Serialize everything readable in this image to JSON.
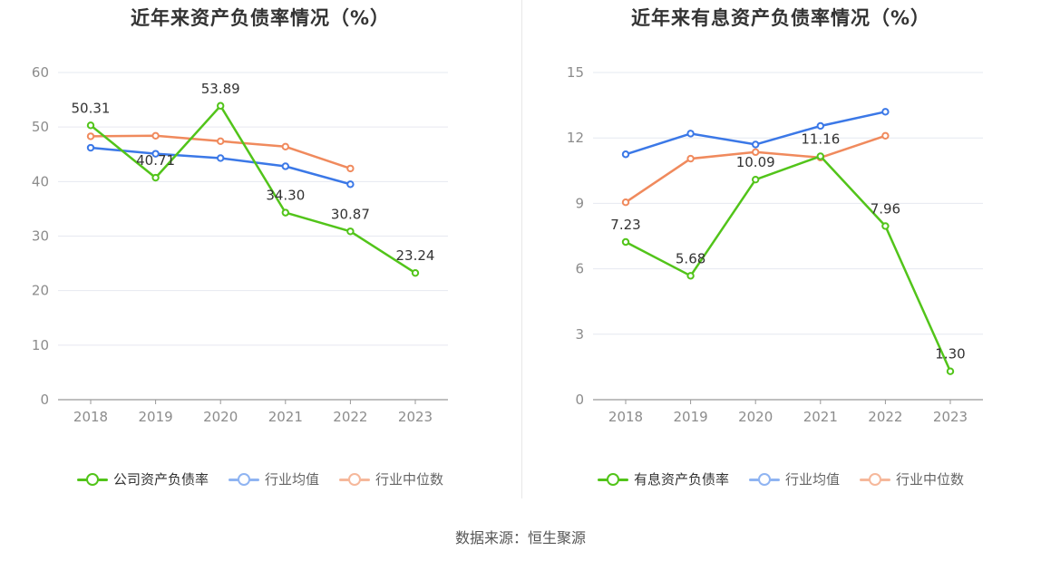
{
  "colors": {
    "company": "#52c41a",
    "industry_avg": "#3b78e7",
    "industry_median": "#f08a5d",
    "grid": "#e6e8f0",
    "axis": "#999999",
    "tick_text": "#8c8c8c",
    "label_text": "#333333"
  },
  "source": "数据来源：恒生聚源",
  "chart_data": [
    {
      "type": "line",
      "title": "近年来资产负债率情况（%）",
      "categories": [
        "2018",
        "2019",
        "2020",
        "2021",
        "2022",
        "2023"
      ],
      "ylim": [
        0,
        60
      ],
      "yticks": [
        0,
        10,
        20,
        30,
        40,
        50,
        60
      ],
      "grid": true,
      "legend_position": "bottom",
      "series": [
        {
          "name": "公司资产负债率",
          "key": "company",
          "values": [
            50.31,
            40.71,
            53.89,
            34.3,
            30.87,
            23.24
          ],
          "labels": [
            "50.31",
            "40.71",
            "53.89",
            "34.30",
            "30.87",
            "23.24"
          ]
        },
        {
          "name": "行业均值",
          "key": "industry_avg",
          "values": [
            46.2,
            45.1,
            44.3,
            42.8,
            39.5,
            null
          ]
        },
        {
          "name": "行业中位数",
          "key": "industry_median",
          "values": [
            48.3,
            48.4,
            47.4,
            46.4,
            42.4,
            null
          ]
        }
      ]
    },
    {
      "type": "line",
      "title": "近年来有息资产负债率情况（%）",
      "categories": [
        "2018",
        "2019",
        "2020",
        "2021",
        "2022",
        "2023"
      ],
      "ylim": [
        0,
        15
      ],
      "yticks": [
        0,
        3,
        6,
        9,
        12,
        15
      ],
      "grid": true,
      "legend_position": "bottom",
      "series": [
        {
          "name": "有息资产负债率",
          "key": "company",
          "values": [
            7.23,
            5.68,
            10.09,
            11.16,
            7.96,
            1.3
          ],
          "labels": [
            "7.23",
            "5.68",
            "10.09",
            "11.16",
            "7.96",
            "1.30"
          ]
        },
        {
          "name": "行业均值",
          "key": "industry_avg",
          "values": [
            11.25,
            12.2,
            11.7,
            12.55,
            13.2,
            null
          ]
        },
        {
          "name": "行业中位数",
          "key": "industry_median",
          "values": [
            9.05,
            11.05,
            11.35,
            11.1,
            12.1,
            null
          ]
        }
      ]
    }
  ]
}
